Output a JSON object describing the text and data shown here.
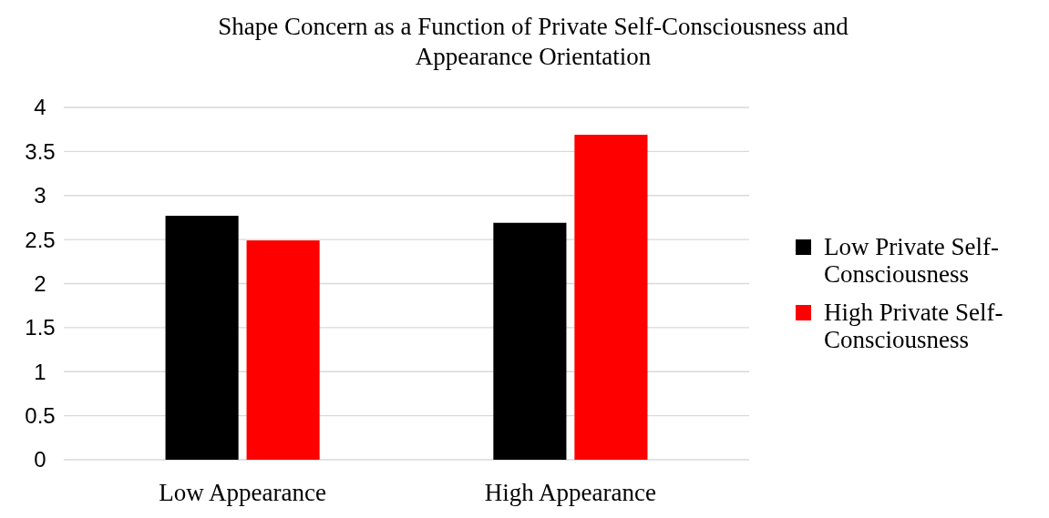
{
  "chart_data": {
    "type": "bar",
    "title": "Shape Concern as a Function of Private Self-Consciousness and Appearance Orientation",
    "categories": [
      "Low Appearance",
      "High Appearance"
    ],
    "series": [
      {
        "name": "Low Private Self-Consciousness",
        "color": "#000000",
        "values": [
          2.77,
          2.69
        ]
      },
      {
        "name": "High Private Self-Consciousness",
        "color": "#ff0000",
        "values": [
          2.49,
          3.69
        ]
      }
    ],
    "ylim": [
      0,
      4
    ],
    "yticks": [
      0,
      {
        "value": 0.5,
        "label": "0.5"
      },
      1,
      {
        "value": 1.5,
        "label": "1.5"
      },
      2,
      {
        "value": 2.5,
        "label": "2.5"
      },
      3,
      {
        "value": 3.5,
        "label": "3.5"
      },
      4
    ],
    "grid": "y",
    "legend": "right"
  }
}
